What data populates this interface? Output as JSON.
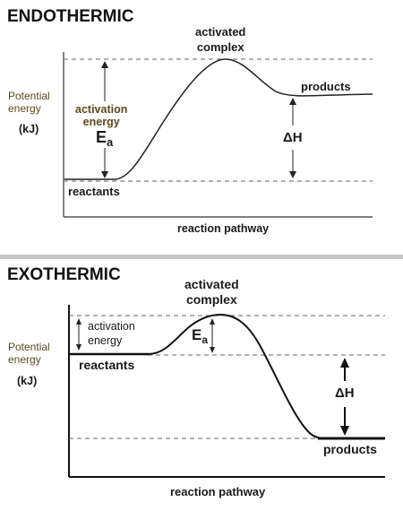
{
  "endothermic": {
    "title": "ENDOTHERMIC",
    "y_label_line1": "Potential",
    "y_label_line2": "energy",
    "y_unit": "(kJ)",
    "activated_complex_line1": "activated",
    "activated_complex_line2": "complex",
    "products": "products",
    "activation_energy_line1": "activation",
    "activation_energy_line2": "energy",
    "ea": "E",
    "ea_sub": "a",
    "delta_h": "ΔH",
    "reactants": "reactants",
    "x_label": "reaction pathway",
    "colors": {
      "y_label": "#5a4a1e",
      "line": "#222222",
      "dash": "#555555"
    }
  },
  "exothermic": {
    "title": "EXOTHERMIC",
    "y_label_line1": "Potential",
    "y_label_line2": "energy",
    "y_unit": "(kJ)",
    "activated_complex_line1": "activated",
    "activated_complex_line2": "complex",
    "activation_energy_line1": "activation",
    "activation_energy_line2": "energy",
    "ea": "E",
    "ea_sub": "a",
    "reactants": "reactants",
    "delta_h": "ΔH",
    "products": "products",
    "x_label": "reaction pathway",
    "colors": {
      "y_label": "#5a4a1e",
      "line": "#111111",
      "dash": "#555555"
    }
  }
}
